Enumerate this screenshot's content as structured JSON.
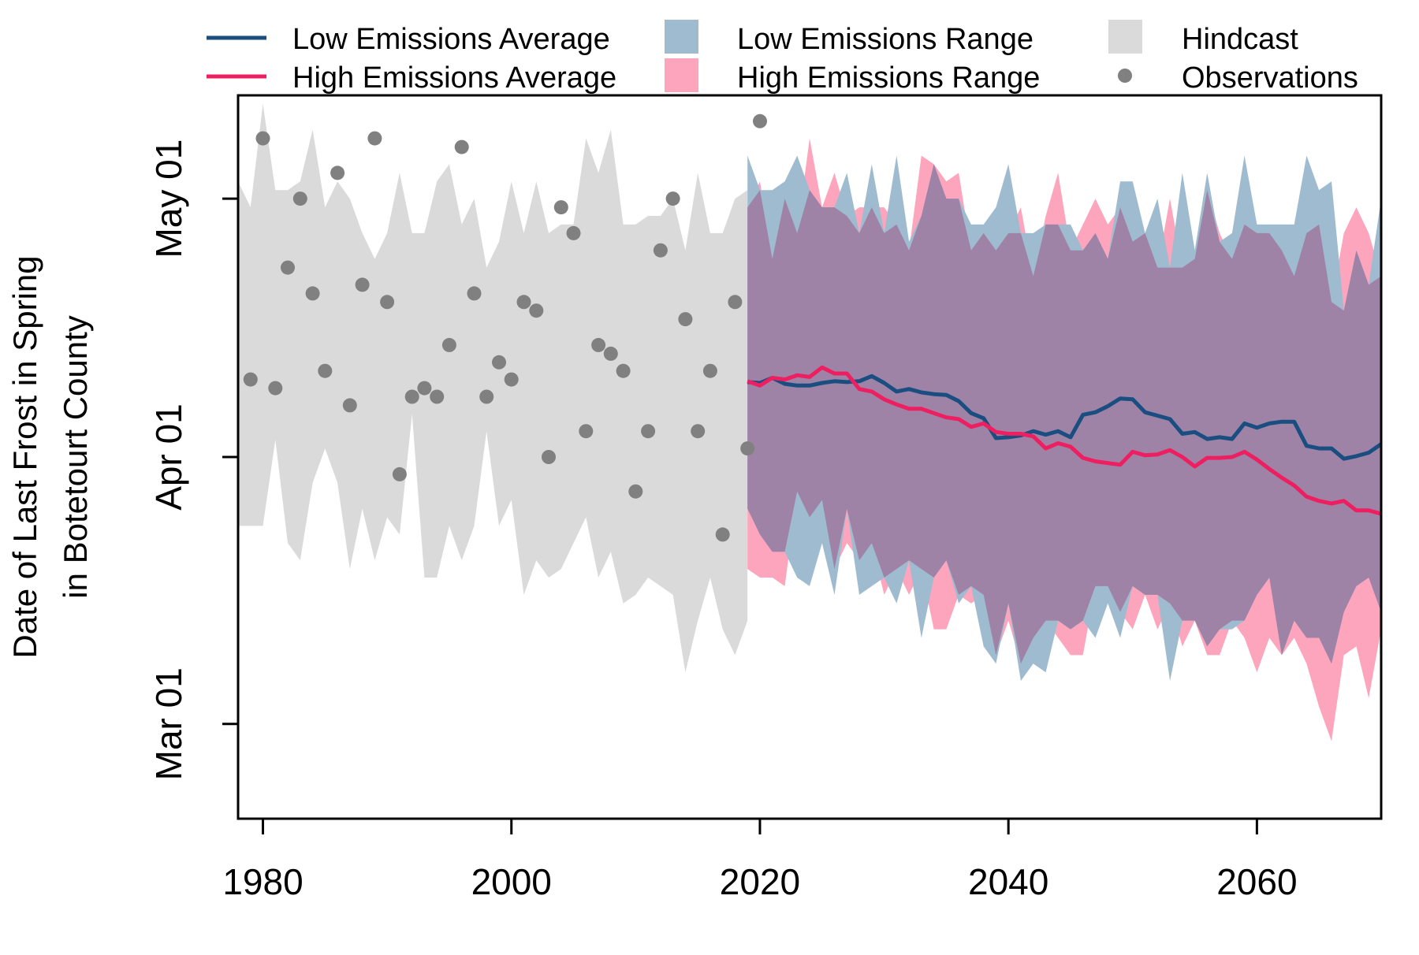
{
  "chart_data": {
    "type": "line",
    "ylabel_line1": "Date of Last Frost in Spring",
    "ylabel_line2": "in Botetourt County",
    "xlim": [
      1978,
      2070
    ],
    "ylim_day_of_year": [
      49,
      133
    ],
    "x_ticks": [
      1980,
      2000,
      2020,
      2040,
      2060
    ],
    "y_ticks": [
      {
        "label": "Mar 01",
        "day": 60
      },
      {
        "label": "Apr 01",
        "day": 91
      },
      {
        "label": "May 01",
        "day": 121
      }
    ],
    "grid": false,
    "legend": {
      "placement": "top",
      "entries": [
        {
          "name": "Low Emissions Average",
          "kind": "line",
          "color": "#1a4e80"
        },
        {
          "name": "High Emissions Average",
          "kind": "line",
          "color": "#ee1f60"
        },
        {
          "name": "Low Emissions Range",
          "kind": "box",
          "color": "#9fbbd0"
        },
        {
          "name": "High Emissions Range",
          "kind": "box",
          "color": "#fda5bd"
        },
        {
          "name": "Hindcast",
          "kind": "box",
          "color": "#dadada"
        },
        {
          "name": "Observations",
          "kind": "point",
          "color": "#808080"
        }
      ]
    },
    "colors": {
      "low_avg": "#1a4e80",
      "high_avg": "#ee1f60",
      "low_range": "#9fbbd0",
      "high_range": "#fda5bd",
      "overlap": "#9e83a6",
      "hindcast": "#dadada",
      "observations": "#808080"
    },
    "hindcast": {
      "x": [
        1978,
        1979,
        1980,
        1981,
        1982,
        1983,
        1984,
        1985,
        1986,
        1987,
        1988,
        1989,
        1990,
        1991,
        1992,
        1993,
        1994,
        1995,
        1996,
        1997,
        1998,
        1999,
        2000,
        2001,
        2002,
        2003,
        2004,
        2005,
        2006,
        2007,
        2008,
        2009,
        2010,
        2011,
        2012,
        2013,
        2014,
        2015,
        2016,
        2017,
        2018,
        2019
      ],
      "upper": [
        123,
        120,
        132,
        122,
        122,
        123,
        129,
        120,
        123,
        121,
        117,
        114,
        117,
        124,
        117,
        117,
        123,
        125,
        118,
        121,
        113,
        116,
        123,
        117,
        123,
        117,
        118,
        118,
        128,
        124,
        129,
        118,
        118,
        119,
        119,
        121,
        115,
        124,
        117,
        117,
        121,
        122
      ],
      "lower": [
        83,
        83,
        83,
        93,
        81,
        79,
        88,
        92,
        88,
        78,
        85,
        79,
        84,
        82,
        96,
        77,
        77,
        83,
        79,
        83,
        94,
        83,
        86,
        75,
        79,
        77,
        78,
        81,
        84,
        77,
        80,
        74,
        75,
        77,
        76,
        75,
        66,
        72,
        77,
        71,
        68,
        72
      ]
    },
    "observations": {
      "x": [
        1979,
        1980,
        1981,
        1982,
        1983,
        1984,
        1985,
        1986,
        1987,
        1988,
        1989,
        1990,
        1991,
        1992,
        1993,
        1994,
        1995,
        1996,
        1997,
        1998,
        1999,
        2000,
        2001,
        2002,
        2003,
        2004,
        2005,
        2006,
        2007,
        2008,
        2009,
        2010,
        2011,
        2012,
        2013,
        2014,
        2015,
        2016,
        2017,
        2018,
        2019,
        2020
      ],
      "y": [
        100,
        128,
        99,
        113,
        121,
        110,
        101,
        124,
        97,
        111,
        128,
        109,
        89,
        98,
        99,
        98,
        104,
        127,
        110,
        98,
        102,
        100,
        109,
        108,
        91,
        120,
        117,
        94,
        104,
        103,
        101,
        87,
        94,
        115,
        121,
        107,
        94,
        101,
        82,
        109,
        92,
        130
      ]
    },
    "projection_x": [
      2019,
      2020,
      2021,
      2022,
      2023,
      2024,
      2025,
      2026,
      2027,
      2028,
      2029,
      2030,
      2031,
      2032,
      2033,
      2034,
      2035,
      2036,
      2037,
      2038,
      2039,
      2040,
      2041,
      2042,
      2043,
      2044,
      2045,
      2046,
      2047,
      2048,
      2049,
      2050,
      2051,
      2052,
      2053,
      2054,
      2055,
      2056,
      2057,
      2058,
      2059,
      2060,
      2061,
      2062,
      2063,
      2064,
      2065,
      2066,
      2067,
      2068,
      2069,
      2070
    ],
    "series": [
      {
        "name": "Low Emissions Average",
        "values": [
          99.7,
          99.6,
          100.2,
          99.5,
          99.3,
          99.3,
          99.6,
          99.8,
          99.7,
          99.8,
          100.4,
          99.6,
          98.6,
          98.9,
          98.5,
          98.3,
          98.2,
          97.5,
          96.1,
          95.5,
          93.2,
          93.3,
          93.5,
          94.0,
          93.6,
          94.0,
          93.3,
          95.9,
          96.2,
          96.9,
          97.8,
          97.7,
          96.2,
          95.8,
          95.4,
          93.7,
          93.9,
          93.1,
          93.3,
          93.1,
          94.9,
          94.4,
          94.9,
          95.1,
          95.1,
          92.3,
          92.0,
          92.0,
          90.8,
          91.1,
          91.5,
          92.5
        ]
      },
      {
        "name": "High Emissions Average",
        "values": [
          99.8,
          99.3,
          100.2,
          100.0,
          100.5,
          100.3,
          101.4,
          100.7,
          100.7,
          98.9,
          98.6,
          97.7,
          97.1,
          96.6,
          96.6,
          96.1,
          95.6,
          95.4,
          94.5,
          94.9,
          93.9,
          93.7,
          93.7,
          93.4,
          92.0,
          92.6,
          92.2,
          90.9,
          90.5,
          90.3,
          90.1,
          91.6,
          91.2,
          91.3,
          91.8,
          91.0,
          89.9,
          90.9,
          90.9,
          91.0,
          91.6,
          90.7,
          89.6,
          88.6,
          87.7,
          86.4,
          85.9,
          85.6,
          85.9,
          84.8,
          84.8,
          84.4
        ]
      }
    ],
    "low_range": {
      "upper": [
        126,
        122,
        122,
        123,
        126,
        122,
        120,
        120,
        124,
        117,
        125,
        117,
        126,
        116,
        119,
        125,
        121,
        121,
        118,
        118,
        120,
        125,
        117,
        117,
        118,
        118,
        118,
        115,
        117,
        114,
        123,
        123,
        117,
        121,
        113,
        124,
        115,
        124,
        116,
        117,
        126,
        118,
        118,
        118,
        118,
        126,
        122,
        123,
        108,
        115,
        111,
        121
      ],
      "lower": [
        85,
        82,
        80,
        80,
        77,
        76,
        81,
        75,
        85,
        75,
        76,
        77,
        74,
        79,
        70,
        77,
        79,
        74,
        76,
        69,
        67,
        74,
        65,
        67,
        66,
        72,
        71,
        72,
        70,
        74,
        70,
        76,
        75,
        75,
        65,
        72,
        72,
        69,
        71,
        71,
        72,
        75,
        77,
        68,
        72,
        70,
        70,
        67,
        73,
        76,
        77,
        73
      ]
    },
    "high_range": {
      "upper": [
        120,
        123,
        114,
        121,
        117,
        128,
        120,
        124,
        119,
        120,
        120,
        120,
        118,
        115,
        126,
        125,
        123,
        124,
        115,
        117,
        115,
        117,
        120,
        112,
        119,
        124,
        115,
        118,
        121,
        118,
        120,
        116,
        117,
        113,
        121,
        113,
        114,
        122,
        117,
        114,
        118,
        117,
        117,
        115,
        112,
        117,
        118,
        109,
        117,
        120,
        117,
        112
      ]
    },
    "high_range_lower": [
      78,
      77,
      77,
      76,
      87,
      84,
      86,
      78,
      81,
      79,
      81,
      75,
      78,
      75,
      78,
      71,
      71,
      75,
      74,
      75,
      68,
      72,
      67,
      70,
      72,
      70,
      68,
      68,
      76,
      76,
      73,
      71,
      75,
      71,
      74,
      69,
      72,
      68,
      68,
      72,
      70,
      66,
      70,
      68,
      70,
      67,
      62,
      58,
      68,
      69,
      63,
      71
    ]
  }
}
